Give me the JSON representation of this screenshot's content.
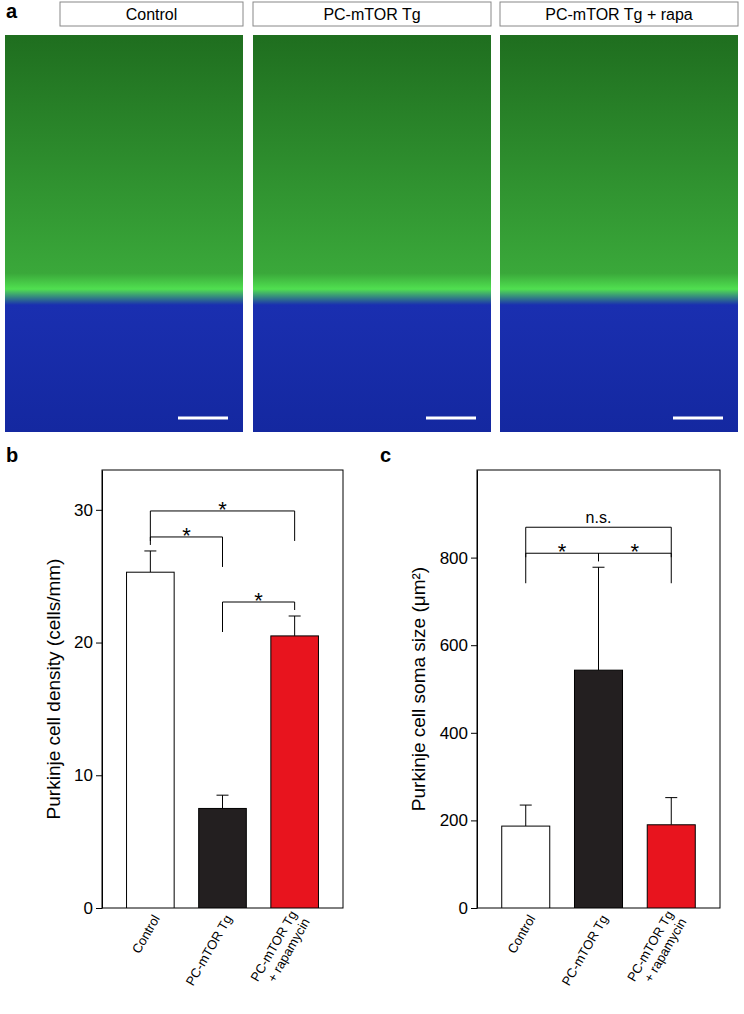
{
  "panel_a": {
    "label": "a",
    "images": [
      "Control",
      "PC-mTOR Tg",
      "PC-mTOR Tg + rapa"
    ]
  },
  "chart_data": [
    {
      "type": "bar",
      "label": "b",
      "y_label": "Purkinje cell density (cells/mm)",
      "categories": [
        "Control",
        "PC-mTOR Tg",
        "PC-mTOR Tg + rapamycin"
      ],
      "values": [
        25.3,
        7.5,
        20.5
      ],
      "errors": [
        1.6,
        1.0,
        1.5
      ],
      "colors": [
        "#ffffff",
        "#231f20",
        "#e8141e"
      ],
      "ylim": [
        0,
        33
      ],
      "yticks": [
        0,
        10,
        20,
        30
      ],
      "annotations": [
        {
          "pair": [
            0,
            2
          ],
          "text": "*"
        },
        {
          "pair": [
            0,
            1
          ],
          "text": "*"
        },
        {
          "pair": [
            1,
            2
          ],
          "text": "*"
        }
      ]
    },
    {
      "type": "bar",
      "label": "c",
      "y_label": "Purkinje cell soma size (μm²)",
      "categories": [
        "Control",
        "PC-mTOR Tg",
        "PC-mTOR Tg + rapamycin"
      ],
      "values": [
        187,
        543,
        190
      ],
      "errors": [
        48,
        235,
        62
      ],
      "colors": [
        "#ffffff",
        "#231f20",
        "#e8141e"
      ],
      "ylim": [
        0,
        1000
      ],
      "yticks": [
        0,
        200,
        400,
        600,
        800
      ],
      "annotations": [
        {
          "pair": [
            0,
            2
          ],
          "text": "n.s."
        },
        {
          "pair": [
            0,
            1
          ],
          "text": "*"
        },
        {
          "pair": [
            1,
            2
          ],
          "text": "*"
        }
      ]
    }
  ]
}
